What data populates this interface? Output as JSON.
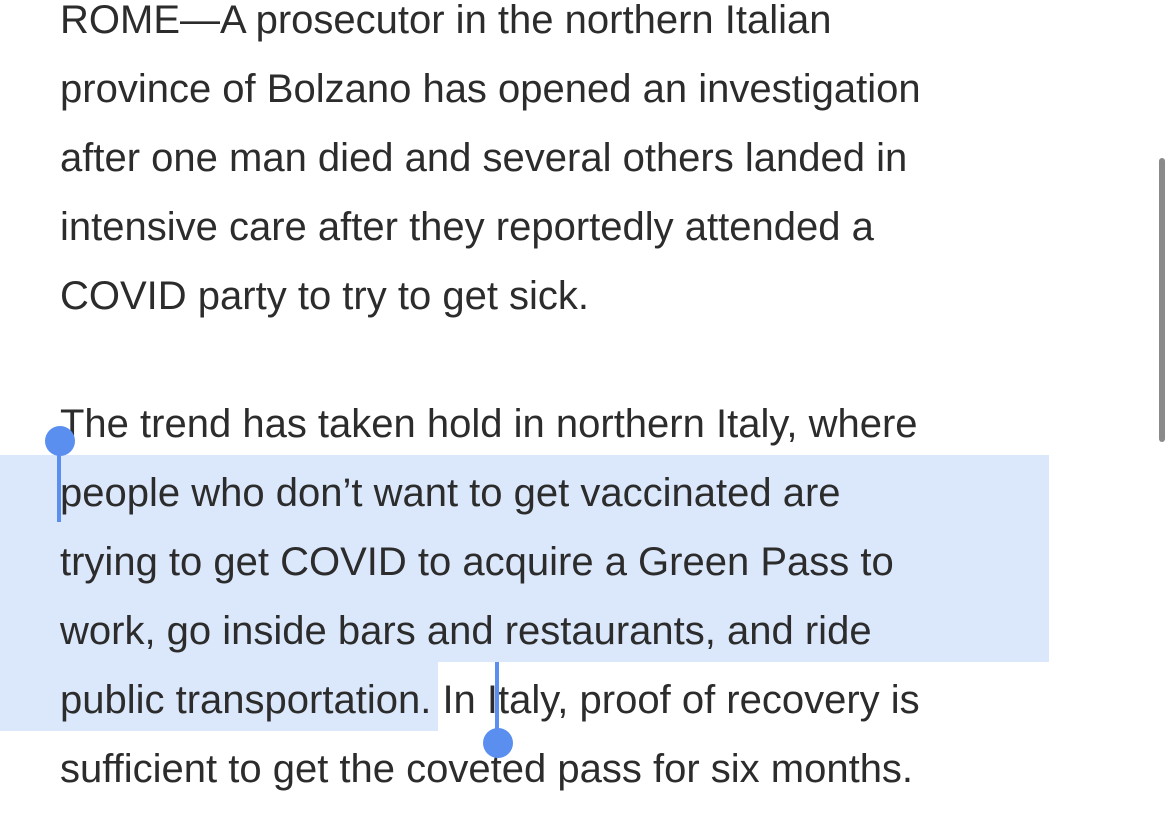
{
  "article": {
    "paragraph_1": {
      "lines": [
        "ROME—A prosecutor in the northern Italian",
        "province of Bolzano has opened an investigation",
        "after one man died and several others landed in",
        "intensive care after they reportedly attended a",
        "COVID party to try to get sick."
      ]
    },
    "paragraph_2": {
      "line_1": "The trend has taken hold in northern Italy, where",
      "line_2": "people who don’t want to get vaccinated are",
      "line_3": "trying to get COVID to acquire a Green Pass to",
      "line_4": "work, go inside bars and restaurants, and ride",
      "line_5_selected": "public transportation",
      "line_5_rest": ". In Italy, proof of recovery is",
      "line_6": "sufficient to get the coveted pass for six months."
    }
  },
  "selection": {
    "color": "#dbe7fb",
    "handle_color": "#5a8ff0",
    "selected_text": "people who don’t want to get vaccinated are trying to get COVID to acquire a Green Pass to work, go inside bars and restaurants, and ride public transportation"
  },
  "scrollbar": {
    "color": "#8a8a8a"
  }
}
